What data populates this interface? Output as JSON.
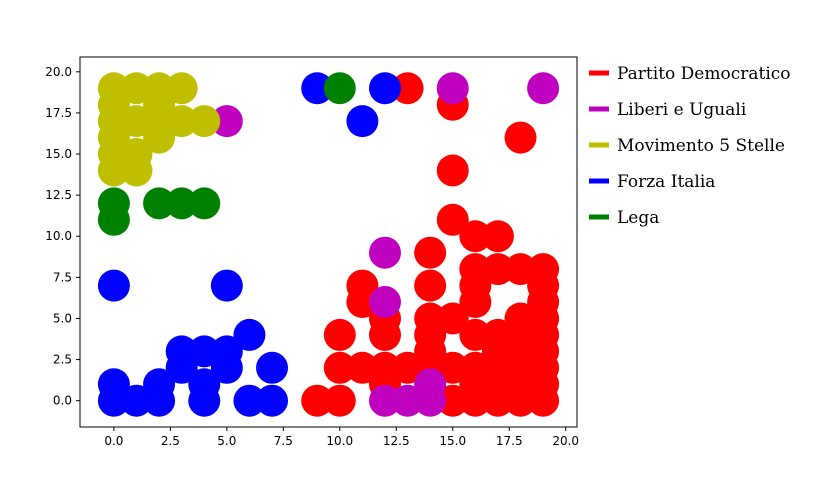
{
  "chart_data": {
    "type": "scatter",
    "title": "",
    "xlabel": "",
    "ylabel": "",
    "xlim": [
      -1.5,
      20.5
    ],
    "ylim": [
      -1.6,
      20.9
    ],
    "grid": false,
    "legend_position": "outside-right",
    "xticks": [
      "0.0",
      "2.5",
      "5.0",
      "7.5",
      "10.0",
      "12.5",
      "15.0",
      "17.5",
      "20.0"
    ],
    "yticks": [
      "0.0",
      "2.5",
      "5.0",
      "7.5",
      "10.0",
      "12.5",
      "15.0",
      "17.5",
      "20.0"
    ],
    "series": [
      {
        "name": "Partito Democratico",
        "color": "#ff0000",
        "points": [
          [
            9,
            0
          ],
          [
            10,
            0
          ],
          [
            15,
            0
          ],
          [
            16,
            0
          ],
          [
            17,
            0
          ],
          [
            18,
            0
          ],
          [
            19,
            0
          ],
          [
            12,
            1
          ],
          [
            16,
            1
          ],
          [
            17,
            1
          ],
          [
            18,
            1
          ],
          [
            19,
            1
          ],
          [
            10,
            2
          ],
          [
            11,
            2
          ],
          [
            12,
            2
          ],
          [
            13,
            2
          ],
          [
            14,
            2
          ],
          [
            15,
            2
          ],
          [
            16,
            2
          ],
          [
            17,
            2
          ],
          [
            18,
            2
          ],
          [
            19,
            2
          ],
          [
            14,
            3
          ],
          [
            17,
            3
          ],
          [
            18,
            3
          ],
          [
            19,
            3
          ],
          [
            10,
            4
          ],
          [
            12,
            4
          ],
          [
            14,
            4
          ],
          [
            16,
            4
          ],
          [
            17,
            4
          ],
          [
            18,
            4
          ],
          [
            19,
            4
          ],
          [
            12,
            5
          ],
          [
            14,
            5
          ],
          [
            15,
            5
          ],
          [
            18,
            5
          ],
          [
            19,
            5
          ],
          [
            11,
            6
          ],
          [
            16,
            6
          ],
          [
            19,
            6
          ],
          [
            11,
            7
          ],
          [
            14,
            7
          ],
          [
            16,
            7
          ],
          [
            19,
            7
          ],
          [
            16,
            8
          ],
          [
            17,
            8
          ],
          [
            18,
            8
          ],
          [
            19,
            8
          ],
          [
            14,
            9
          ],
          [
            16,
            10
          ],
          [
            17,
            10
          ],
          [
            15,
            11
          ],
          [
            15,
            14
          ],
          [
            18,
            16
          ],
          [
            15,
            18
          ],
          [
            13,
            19
          ]
        ]
      },
      {
        "name": "Liberi e Uguali",
        "color": "#bf00bf",
        "points": [
          [
            12,
            0
          ],
          [
            13,
            0
          ],
          [
            14,
            0
          ],
          [
            14,
            1
          ],
          [
            12,
            6
          ],
          [
            12,
            9
          ],
          [
            5,
            17
          ],
          [
            15,
            19
          ],
          [
            19,
            19
          ]
        ]
      },
      {
        "name": "Movimento 5 Stelle",
        "color": "#bfbf00",
        "points": [
          [
            0,
            19
          ],
          [
            1,
            19
          ],
          [
            2,
            19
          ],
          [
            3,
            19
          ],
          [
            0,
            18
          ],
          [
            2,
            18
          ],
          [
            0,
            17
          ],
          [
            1,
            17
          ],
          [
            2,
            17
          ],
          [
            3,
            17
          ],
          [
            4,
            17
          ],
          [
            0,
            16
          ],
          [
            2,
            16
          ],
          [
            0,
            15
          ],
          [
            1,
            15
          ],
          [
            0,
            14
          ],
          [
            1,
            14
          ]
        ]
      },
      {
        "name": "Forza Italia",
        "color": "#0000ff",
        "points": [
          [
            0,
            0
          ],
          [
            1,
            0
          ],
          [
            2,
            0
          ],
          [
            4,
            0
          ],
          [
            6,
            0
          ],
          [
            7,
            0
          ],
          [
            0,
            1
          ],
          [
            2,
            1
          ],
          [
            4,
            1
          ],
          [
            3,
            2
          ],
          [
            5,
            2
          ],
          [
            7,
            2
          ],
          [
            3,
            3
          ],
          [
            4,
            3
          ],
          [
            5,
            3
          ],
          [
            6,
            4
          ],
          [
            0,
            7
          ],
          [
            5,
            7
          ],
          [
            11,
            17
          ],
          [
            9,
            19
          ],
          [
            12,
            19
          ]
        ]
      },
      {
        "name": "Lega",
        "color": "#008000",
        "points": [
          [
            0,
            11
          ],
          [
            0,
            12
          ],
          [
            2,
            12
          ],
          [
            3,
            12
          ],
          [
            4,
            12
          ],
          [
            10,
            19
          ]
        ]
      }
    ]
  }
}
